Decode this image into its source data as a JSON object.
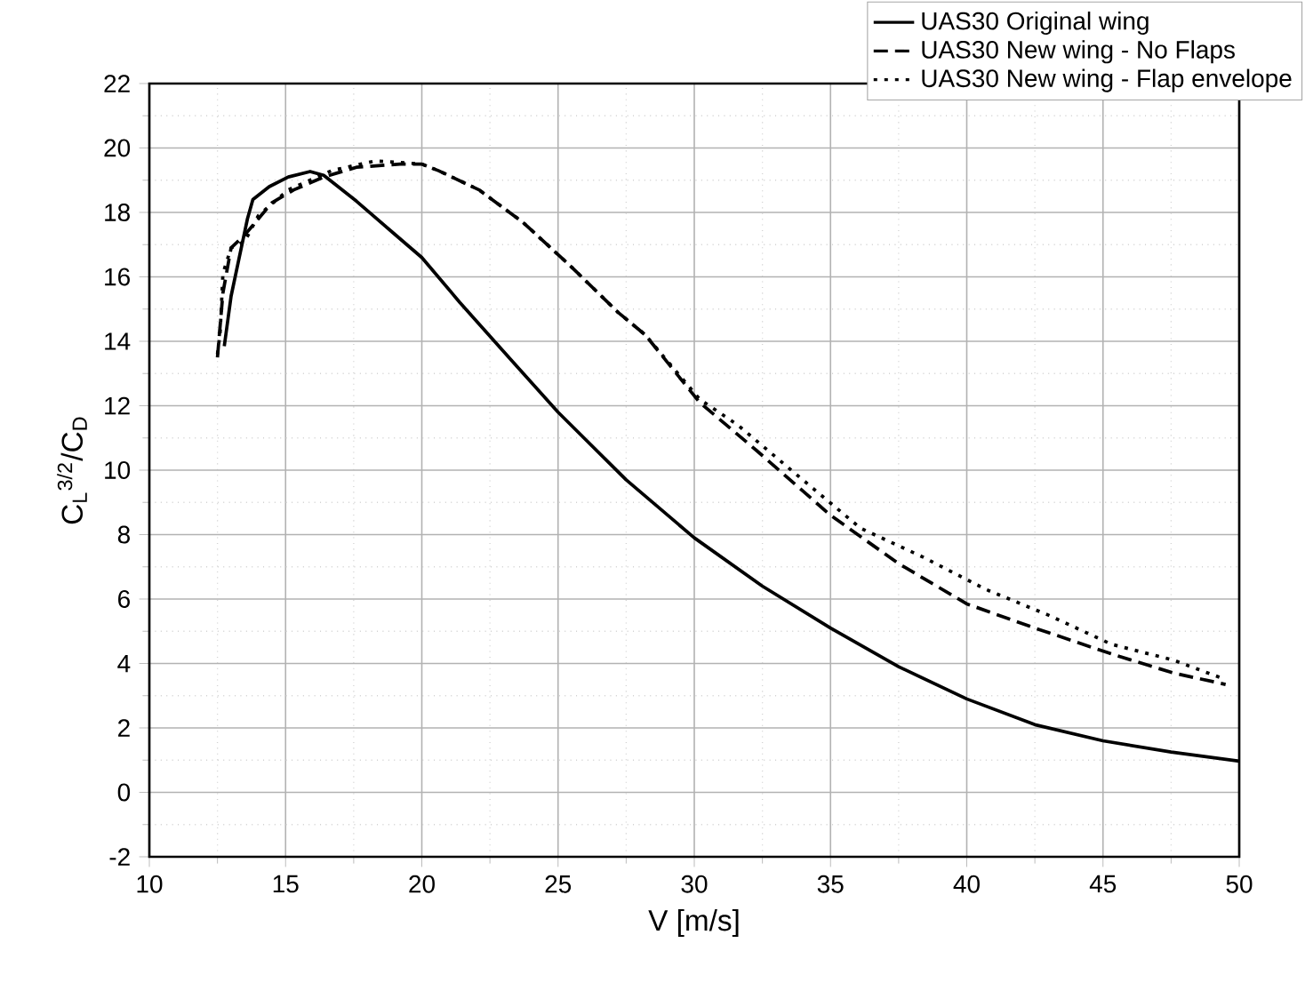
{
  "chart_data": {
    "type": "line",
    "xlabel": "V [m/s]",
    "ylabel": "C$_{L}$$^{3/2}$/C$_{D}$",
    "xlim": [
      10,
      50
    ],
    "ylim": [
      -2,
      22
    ],
    "xticks": [
      10,
      15,
      20,
      25,
      30,
      35,
      40,
      45,
      50
    ],
    "yticks": [
      -2,
      0,
      2,
      4,
      6,
      8,
      10,
      12,
      14,
      16,
      18,
      20,
      22
    ],
    "grid": true,
    "legend": "top right",
    "marker": "none",
    "series": [
      {
        "name": "UAS30 Original wing",
        "color": "#000000",
        "line_style": "solid",
        "x": [
          12.75,
          13.0,
          13.3,
          13.6,
          13.8,
          14.4,
          15.1,
          15.9,
          16.4,
          17.6,
          18.9,
          20,
          21.4,
          23.3,
          25,
          27.5,
          30,
          32.5,
          35,
          37.5,
          40,
          42.5,
          45,
          47.5,
          50
        ],
        "values": [
          13.85,
          15.4,
          16.6,
          17.8,
          18.4,
          18.8,
          19.1,
          19.27,
          19.15,
          18.35,
          17.4,
          16.6,
          15.2,
          13.4,
          11.8,
          9.7,
          7.9,
          6.4,
          5.1,
          3.9,
          2.9,
          2.1,
          1.6,
          1.25,
          0.97
        ]
      },
      {
        "name": "UAS30 New wing - No Flaps",
        "color": "#000000",
        "line_style": "dashed",
        "x": [
          12.5,
          12.7,
          13.0,
          13.5,
          14.0,
          14.5,
          15.3,
          16.4,
          17.6,
          19.2,
          20,
          20.6,
          22.1,
          23.7,
          25.5,
          27.2,
          28.2,
          30.2,
          32.3,
          35,
          37.5,
          40,
          42.5,
          45.3,
          47.6,
          49.5
        ],
        "values": [
          13.5,
          15.5,
          16.9,
          17.3,
          17.8,
          18.3,
          18.7,
          19.1,
          19.4,
          19.5,
          19.5,
          19.3,
          18.7,
          17.7,
          16.3,
          14.9,
          14.2,
          12.1,
          10.6,
          8.6,
          7.1,
          5.85,
          5.1,
          4.3,
          3.7,
          3.35
        ]
      },
      {
        "name": "UAS30 New wing - Flap envelope",
        "color": "#000000",
        "line_style": "dotted",
        "x": [
          12.5,
          12.6,
          12.7,
          13.0,
          13.5,
          14.0,
          15.1,
          16.7,
          18.3,
          19.2,
          20,
          20.6,
          22.1,
          23.7,
          25.5,
          27.2,
          28.2,
          30.2,
          31.6,
          33.7,
          36.1,
          38.4,
          40.7,
          43,
          45.3,
          47.6,
          49.5
        ],
        "values": [
          13.6,
          14.3,
          16.1,
          16.9,
          17.1,
          17.9,
          18.7,
          19.3,
          19.6,
          19.55,
          19.5,
          19.3,
          18.7,
          17.7,
          16.3,
          14.9,
          14.2,
          12.2,
          11.4,
          9.9,
          8.2,
          7.3,
          6.3,
          5.5,
          4.6,
          4.1,
          3.5
        ]
      }
    ]
  }
}
